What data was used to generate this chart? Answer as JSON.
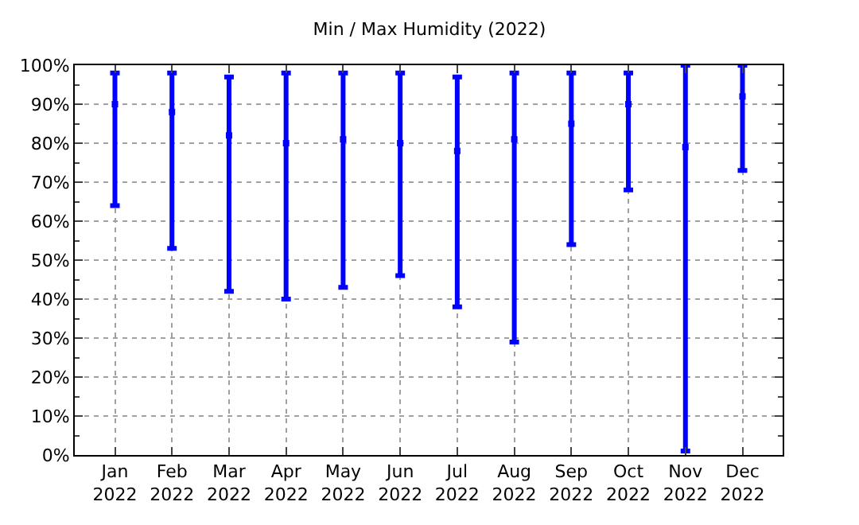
{
  "chart_data": {
    "type": "scatter",
    "title": "Min / Max Humidity (2022)",
    "categories": [
      "Jan\n2022",
      "Feb\n2022",
      "Mar\n2022",
      "Apr\n2022",
      "May\n2022",
      "Jun\n2022",
      "Jul\n2022",
      "Aug\n2022",
      "Sep\n2022",
      "Oct\n2022",
      "Nov\n2022",
      "Dec\n2022"
    ],
    "series": [
      {
        "color": "#0000ff",
        "values": [
          90,
          88,
          82,
          80,
          81,
          80,
          78,
          81,
          85,
          90,
          79,
          92
        ],
        "errors": [
          [
            64,
            98
          ],
          [
            53,
            98
          ],
          [
            42,
            97
          ],
          [
            40,
            98
          ],
          [
            43,
            98
          ],
          [
            46,
            98
          ],
          [
            38,
            97
          ],
          [
            29,
            98
          ],
          [
            54,
            98
          ],
          [
            68,
            98
          ],
          [
            1,
            100
          ],
          [
            73,
            100
          ]
        ]
      }
    ],
    "ylim": [
      0,
      100
    ],
    "yticks": [
      {
        "value": 0,
        "label": "0%"
      },
      {
        "value": 10,
        "label": "10%"
      },
      {
        "value": 20,
        "label": "20%"
      },
      {
        "value": 30,
        "label": "30%"
      },
      {
        "value": 40,
        "label": "40%"
      },
      {
        "value": 50,
        "label": "50%"
      },
      {
        "value": 60,
        "label": "60%"
      },
      {
        "value": 70,
        "label": "70%"
      },
      {
        "value": 80,
        "label": "80%"
      },
      {
        "value": 90,
        "label": "90%"
      },
      {
        "value": 100,
        "label": "100%"
      }
    ],
    "grid": true,
    "marker": "square",
    "legend": false
  }
}
